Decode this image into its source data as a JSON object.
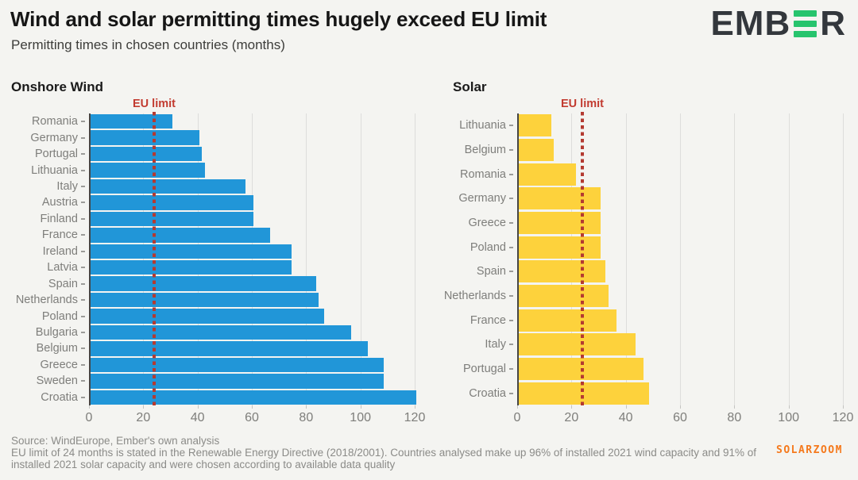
{
  "header": {
    "title": "Wind and solar permitting times hugely exceed EU limit",
    "subtitle": "Permitting times in chosen countries (months)",
    "logo": {
      "prefix": "EMB",
      "suffix": "R",
      "accent_color": "#27c46d",
      "text_color": "#33373c"
    }
  },
  "chart_data": [
    {
      "type": "bar",
      "orientation": "horizontal",
      "title": "Onshore Wind",
      "unit": "months",
      "categories": [
        "Romania",
        "Germany",
        "Portugal",
        "Lithuania",
        "Italy",
        "Austria",
        "Finland",
        "France",
        "Ireland",
        "Latvia",
        "Spain",
        "Netherlands",
        "Poland",
        "Bulgaria",
        "Belgium",
        "Greece",
        "Sweden",
        "Croatia"
      ],
      "values": [
        30,
        40,
        41,
        42,
        57,
        60,
        60,
        66,
        74,
        74,
        83,
        84,
        86,
        96,
        102,
        108,
        108,
        120
      ],
      "bar_color": "#2196d8",
      "xlim": [
        0,
        120
      ],
      "xticks": [
        0,
        20,
        40,
        60,
        80,
        100,
        120
      ],
      "grid": "vertical",
      "reference_line": {
        "label": "EU limit",
        "value": 24,
        "color": "#b43a31",
        "label_color": "#c23b30"
      }
    },
    {
      "type": "bar",
      "orientation": "horizontal",
      "title": "Solar",
      "unit": "months",
      "categories": [
        "Lithuania",
        "Belgium",
        "Romania",
        "Germany",
        "Greece",
        "Poland",
        "Spain",
        "Netherlands",
        "France",
        "Italy",
        "Portugal",
        "Croatia"
      ],
      "values": [
        12,
        13,
        21,
        30,
        30,
        30,
        32,
        33,
        36,
        43,
        46,
        48
      ],
      "bar_color": "#fdd23c",
      "xlim": [
        0,
        120
      ],
      "xticks": [
        0,
        20,
        40,
        60,
        80,
        100,
        120
      ],
      "grid": "vertical",
      "reference_line": {
        "label": "EU limit",
        "value": 24,
        "color": "#b43a31",
        "label_color": "#c23b30"
      }
    }
  ],
  "footer": {
    "source": "Source: WindEurope, Ember's own analysis",
    "note": "EU limit of 24 months is stated in the Renewable Energy Directive (2018/2001). Countries analysed make up 96% of installed 2021 wind capacity and 91% of installed 2021 solar capacity and were chosen according to available data quality"
  },
  "watermark": "SOLARZOOM"
}
